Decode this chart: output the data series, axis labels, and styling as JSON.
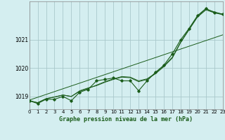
{
  "title": "Graphe pression niveau de la mer (hPa)",
  "bg_color": "#d4eef0",
  "grid_color": "#aac8cc",
  "line_color": "#1a5c1a",
  "xlim": [
    0,
    23
  ],
  "ylim": [
    1018.55,
    1022.35
  ],
  "yticks": [
    1019,
    1020,
    1021
  ],
  "xticks": [
    0,
    1,
    2,
    3,
    4,
    5,
    6,
    7,
    8,
    9,
    10,
    11,
    12,
    13,
    14,
    15,
    16,
    17,
    18,
    19,
    20,
    21,
    22,
    23
  ],
  "series": {
    "main": [
      1018.85,
      1018.75,
      1018.9,
      1018.9,
      1019.0,
      1018.85,
      1019.15,
      1019.25,
      1019.55,
      1019.6,
      1019.65,
      1019.55,
      1019.55,
      1019.2,
      1019.55,
      1019.85,
      1020.1,
      1020.5,
      1021.0,
      1021.4,
      1021.85,
      1022.1,
      1021.95,
      1021.9
    ],
    "smooth1": [
      1018.85,
      1018.78,
      1018.92,
      1018.98,
      1019.05,
      1019.0,
      1019.18,
      1019.28,
      1019.4,
      1019.52,
      1019.62,
      1019.7,
      1019.68,
      1019.55,
      1019.62,
      1019.82,
      1020.08,
      1020.38,
      1020.92,
      1021.38,
      1021.82,
      1022.08,
      1021.98,
      1021.9
    ],
    "smooth2": [
      1018.85,
      1018.78,
      1018.92,
      1018.98,
      1019.05,
      1019.0,
      1019.2,
      1019.3,
      1019.38,
      1019.5,
      1019.6,
      1019.68,
      1019.66,
      1019.52,
      1019.6,
      1019.8,
      1020.05,
      1020.35,
      1020.9,
      1021.35,
      1021.8,
      1022.05,
      1021.95,
      1021.88
    ],
    "linear": [
      1018.87,
      1018.97,
      1019.07,
      1019.17,
      1019.27,
      1019.37,
      1019.47,
      1019.57,
      1019.67,
      1019.77,
      1019.87,
      1019.97,
      1020.07,
      1020.17,
      1020.27,
      1020.37,
      1020.47,
      1020.57,
      1020.67,
      1020.77,
      1020.87,
      1020.97,
      1021.07,
      1021.17
    ]
  }
}
